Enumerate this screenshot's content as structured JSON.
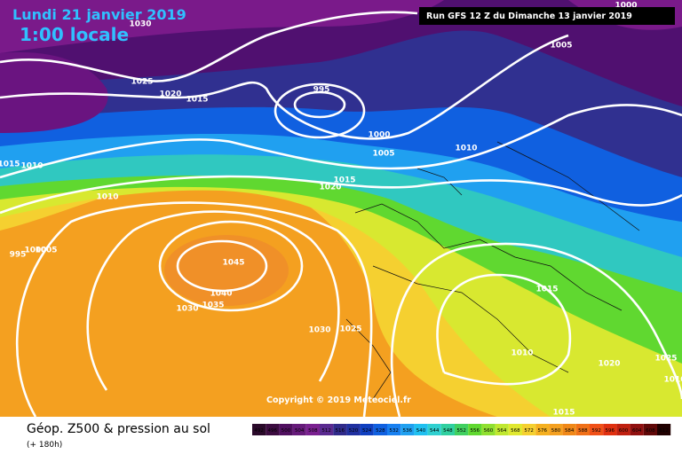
{
  "header": {
    "date": "Lundi 21 janvier 2019",
    "time": "1:00 locale",
    "run": "Run GFS 12 Z du Dimanche 13 janvier 2019"
  },
  "footer": {
    "copyright": "Copyright © 2019 Meteociel.fr",
    "title": "Géop. Z500 & pression au sol",
    "lead": "(+ 180h)"
  },
  "isobars": [
    1030,
    1000,
    1005,
    1025,
    1020,
    1015,
    995,
    1000,
    1005,
    1010,
    1015,
    1020,
    1015,
    1010,
    1010,
    995,
    1000,
    1005,
    1045,
    1040,
    1035,
    1030,
    1030,
    1025,
    1015,
    1010,
    1020,
    1025,
    1015,
    1010
  ],
  "scale": {
    "labels": [
      492,
      496,
      500,
      504,
      508,
      512,
      516,
      520,
      524,
      528,
      532,
      536,
      540,
      544,
      548,
      552,
      556,
      560,
      564,
      568,
      572,
      576,
      580,
      584,
      588,
      592,
      596,
      600,
      604,
      608,
      612
    ],
    "colors": [
      "#2a0a2a",
      "#3c0c40",
      "#501060",
      "#661a7a",
      "#7a2090",
      "#5a2a90",
      "#302a8a",
      "#2030a0",
      "#1040c0",
      "#1060e0",
      "#1880f0",
      "#20a0f0",
      "#20c0f0",
      "#30d0d0",
      "#30d0a0",
      "#40d060",
      "#60d830",
      "#90e030",
      "#c0e830",
      "#e0e830",
      "#f5d030",
      "#f5b020",
      "#f4a020",
      "#f08818",
      "#f07018",
      "#f05018",
      "#e03010",
      "#c02010",
      "#901010",
      "#600808",
      "#200000"
    ]
  }
}
